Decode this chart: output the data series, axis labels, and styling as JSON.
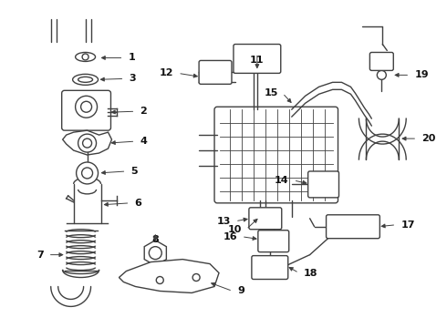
{
  "bg_color": "#ffffff",
  "line_color": "#404040",
  "text_color": "#111111",
  "figsize": [
    4.9,
    3.6
  ],
  "dpi": 100,
  "lw": 1.0
}
